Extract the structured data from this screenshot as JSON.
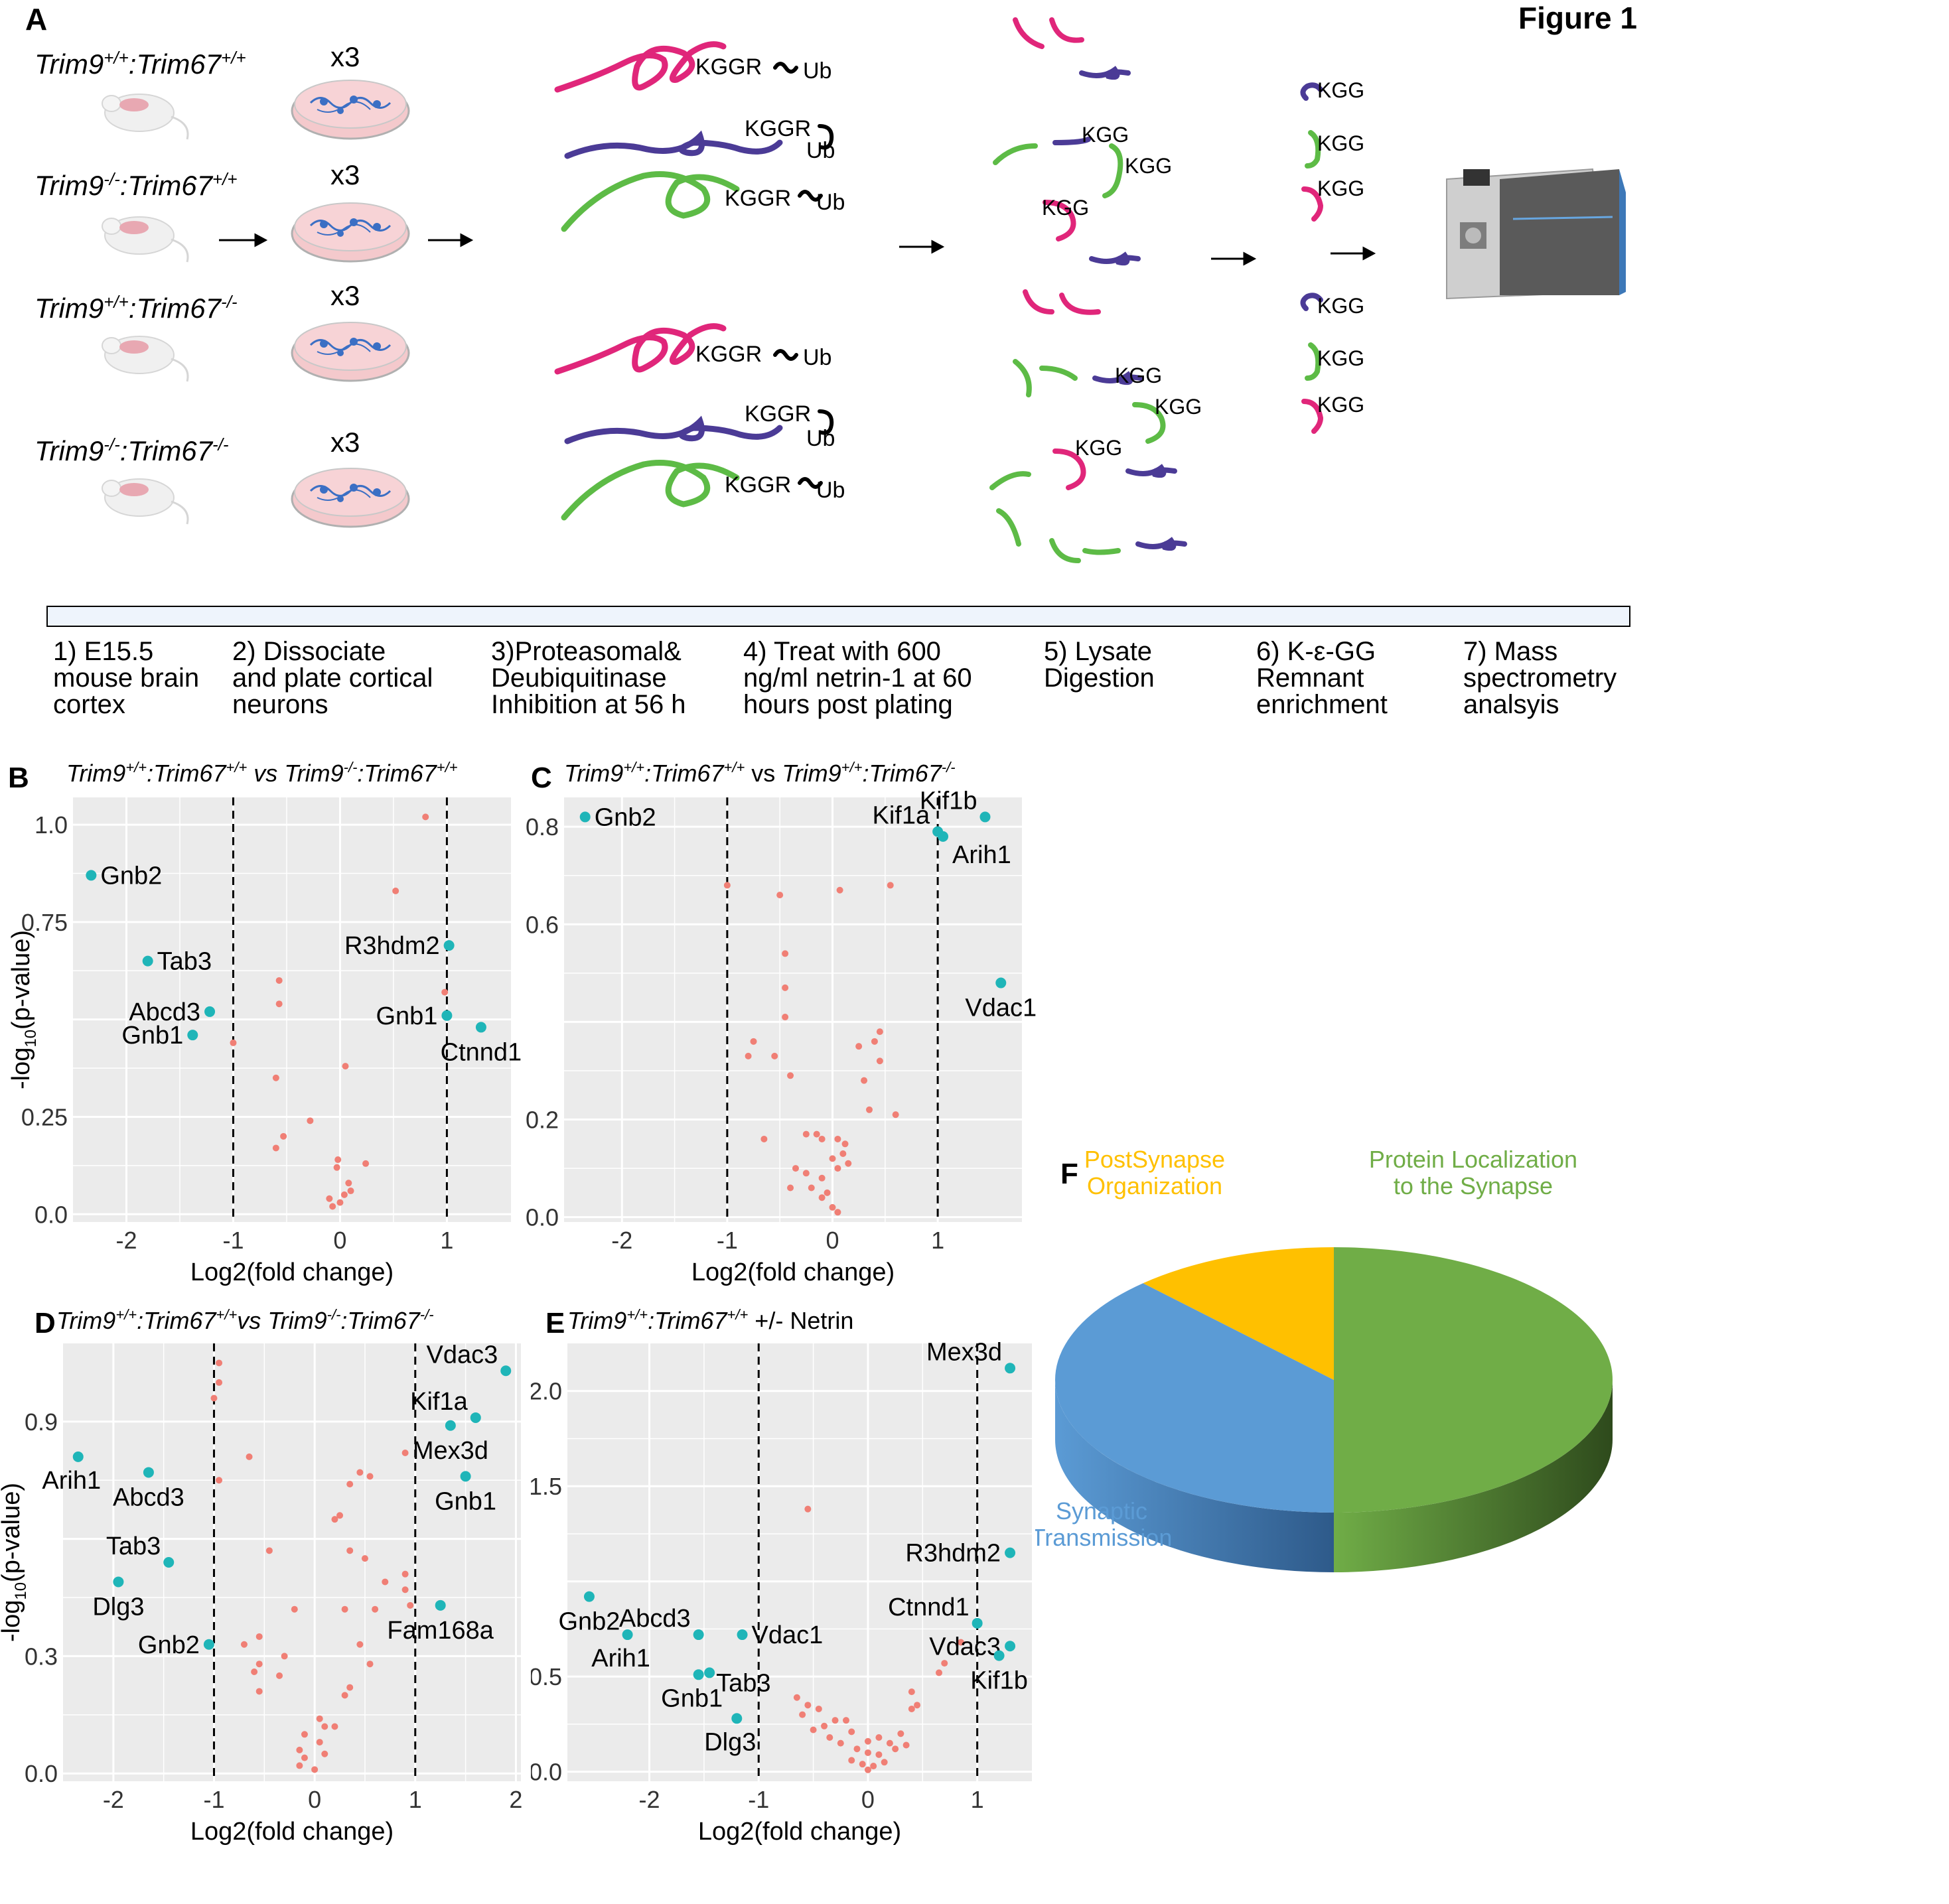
{
  "figure_title": "Figure 1",
  "panel_labels": {
    "A": "A",
    "B": "B",
    "C": "C",
    "D": "D",
    "E": "E",
    "F": "F"
  },
  "panelA": {
    "genotypes": [
      {
        "trim9": "Trim9",
        "trim9_sup": "+/+",
        "sep": ":",
        "trim67": "Trim67",
        "trim67_sup": "+/+"
      },
      {
        "trim9": "Trim9",
        "trim9_sup": "-/-",
        "sep": ":",
        "trim67": "Trim67",
        "trim67_sup": "+/+"
      },
      {
        "trim9": "Trim9",
        "trim9_sup": "+/+",
        "sep": ":",
        "trim67": "Trim67",
        "trim67_sup": "-/-"
      },
      {
        "trim9": "Trim9",
        "trim9_sup": "-/-",
        "sep": ":",
        "trim67": "Trim67",
        "trim67_sup": "-/-"
      }
    ],
    "replicate_label": "x3",
    "peptide_labels": {
      "kggr": "KGGR",
      "kgg": "KGG",
      "ub": "Ub"
    },
    "steps": [
      "1) E15.5\nmouse brain\ncortex",
      "2) Dissociate\nand plate cortical\nneurons",
      "3)Proteasomal&\n Deubiquitinase\nInhibition at 56 h",
      "4) Treat with 600\nng/ml netrin-1 at 60\nhours post plating",
      "5) Lysate\nDigestion",
      "6) K-ε-GG\nRemnant\nenrichment",
      "7) Mass\nspectrometry\nanalsyis"
    ]
  },
  "colors": {
    "magenta": "#e0267a",
    "purple": "#4b3b96",
    "green": "#5dbb46",
    "sig_point": "#1fb5b8",
    "nonsig_point": "#f07f75",
    "plot_bg": "#ebebeb",
    "pie_green": "#70ad47",
    "pie_blue": "#5b9bd5",
    "pie_yellow": "#ffc000"
  },
  "chart_data": [
    {
      "id": "B",
      "type": "scatter",
      "title_parts": [
        "Trim9",
        "+/+",
        ":Trim67",
        "+/+",
        " vs ",
        "Trim9",
        "-/-",
        ":Trim67",
        "+/+"
      ],
      "xlabel": "Log2(fold change)",
      "ylabel": "-log10(p-value)",
      "xlim": [
        -2.5,
        1.6
      ],
      "ylim": [
        -0.02,
        1.07
      ],
      "xticks": [
        -2,
        -1,
        0,
        1
      ],
      "yticks": [
        {
          "v": 0.0,
          "t": "0.0"
        },
        {
          "v": 0.25,
          "t": "0.25"
        },
        {
          "v": 0.5,
          "t": ""
        },
        {
          "v": 0.75,
          "t": "0.75"
        },
        {
          "v": 1.0,
          "t": "1.0"
        }
      ],
      "vlines": [
        -1,
        1
      ],
      "labeled": [
        {
          "x": -2.33,
          "y": 0.87,
          "label": "Gnb2",
          "anchor": "right"
        },
        {
          "x": -1.8,
          "y": 0.65,
          "label": "Tab3",
          "anchor": "right"
        },
        {
          "x": -1.22,
          "y": 0.52,
          "label": "Abcd3",
          "anchor": "left"
        },
        {
          "x": -1.38,
          "y": 0.46,
          "label": "Gnb1",
          "anchor": "left"
        },
        {
          "x": 1.02,
          "y": 0.69,
          "label": "R3hdm2",
          "anchor": "left"
        },
        {
          "x": 1.0,
          "y": 0.51,
          "label": "Gnb1",
          "anchor": "left"
        },
        {
          "x": 1.32,
          "y": 0.48,
          "label": "Ctnnd1",
          "anchor": "below"
        }
      ],
      "points": [
        [
          0.8,
          1.02
        ],
        [
          0.52,
          0.83
        ],
        [
          -0.57,
          0.6
        ],
        [
          -0.57,
          0.54
        ],
        [
          0.98,
          0.57
        ],
        [
          -1.0,
          0.44
        ],
        [
          0.05,
          0.38
        ],
        [
          -0.6,
          0.35
        ],
        [
          -0.28,
          0.24
        ],
        [
          -0.53,
          0.2
        ],
        [
          -0.6,
          0.17
        ],
        [
          -0.02,
          0.14
        ],
        [
          0.24,
          0.13
        ],
        [
          -0.03,
          0.12
        ],
        [
          0.08,
          0.08
        ],
        [
          0.1,
          0.06
        ],
        [
          -0.1,
          0.04
        ],
        [
          0.0,
          0.03
        ],
        [
          -0.07,
          0.02
        ],
        [
          0.04,
          0.05
        ]
      ]
    },
    {
      "id": "C",
      "type": "scatter",
      "title_parts": [
        "Trim9",
        "+/+",
        ":Trim67",
        "+/+",
        " vs ",
        "Trim9",
        "+/+",
        ":Trim67",
        "-/-"
      ],
      "xlabel": "Log2(fold change)",
      "ylabel": "",
      "xlim": [
        -2.55,
        1.8
      ],
      "ylim": [
        -0.01,
        0.86
      ],
      "xticks": [
        -2,
        -1,
        0,
        1
      ],
      "yticks": [
        {
          "v": 0.0,
          "t": "0.0"
        },
        {
          "v": 0.2,
          "t": "0.2"
        },
        {
          "v": 0.4,
          "t": ""
        },
        {
          "v": 0.6,
          "t": "0.6"
        },
        {
          "v": 0.8,
          "t": "0.8"
        }
      ],
      "vlines": [
        -1,
        1
      ],
      "labeled": [
        {
          "x": -2.35,
          "y": 0.82,
          "label": "Gnb2",
          "anchor": "right"
        },
        {
          "x": 1.0,
          "y": 0.79,
          "label": "Kif1a",
          "anchor": "leftup"
        },
        {
          "x": 1.45,
          "y": 0.82,
          "label": "Kif1b",
          "anchor": "leftup"
        },
        {
          "x": 1.05,
          "y": 0.78,
          "label": "Arih1",
          "anchor": "rightdown"
        },
        {
          "x": 1.6,
          "y": 0.48,
          "label": "Vdac1",
          "anchor": "below"
        }
      ],
      "points": [
        [
          -1.0,
          0.68
        ],
        [
          -0.5,
          0.66
        ],
        [
          0.07,
          0.67
        ],
        [
          0.55,
          0.68
        ],
        [
          -0.45,
          0.54
        ],
        [
          -0.45,
          0.47
        ],
        [
          -0.45,
          0.41
        ],
        [
          -0.75,
          0.36
        ],
        [
          -0.8,
          0.33
        ],
        [
          -0.55,
          0.33
        ],
        [
          -0.4,
          0.29
        ],
        [
          0.45,
          0.38
        ],
        [
          0.4,
          0.36
        ],
        [
          0.25,
          0.35
        ],
        [
          0.45,
          0.32
        ],
        [
          0.3,
          0.28
        ],
        [
          0.6,
          0.21
        ],
        [
          0.35,
          0.22
        ],
        [
          -0.65,
          0.16
        ],
        [
          -0.25,
          0.17
        ],
        [
          -0.15,
          0.17
        ],
        [
          -0.1,
          0.16
        ],
        [
          0.05,
          0.16
        ],
        [
          0.12,
          0.15
        ],
        [
          0.1,
          0.13
        ],
        [
          0.15,
          0.11
        ],
        [
          -0.35,
          0.1
        ],
        [
          -0.25,
          0.09
        ],
        [
          0.0,
          0.12
        ],
        [
          0.05,
          0.1
        ],
        [
          -0.1,
          0.08
        ],
        [
          -0.2,
          0.06
        ],
        [
          -0.4,
          0.06
        ],
        [
          -0.05,
          0.05
        ],
        [
          -0.1,
          0.04
        ],
        [
          0.0,
          0.02
        ],
        [
          0.05,
          0.01
        ]
      ]
    },
    {
      "id": "D",
      "type": "scatter",
      "title_parts": [
        "Trim9",
        "+/+",
        ":Trim67",
        "+/+",
        "vs ",
        "Trim9",
        "-/-",
        ":Trim67",
        "-/-"
      ],
      "xlabel": "Log2(fold change)",
      "ylabel": "-log10(p-value)",
      "xlim": [
        -2.5,
        2.05
      ],
      "ylim": [
        -0.02,
        1.1
      ],
      "xticks": [
        -2,
        -1,
        0,
        1,
        2
      ],
      "yticks": [
        {
          "v": 0.0,
          "t": "0.0"
        },
        {
          "v": 0.3,
          "t": "0.3"
        },
        {
          "v": 0.6,
          "t": ""
        },
        {
          "v": 0.9,
          "t": "0.9"
        }
      ],
      "vlines": [
        -1,
        1
      ],
      "labeled": [
        {
          "x": 1.9,
          "y": 1.03,
          "label": "Vdac3",
          "anchor": "leftup"
        },
        {
          "x": 1.6,
          "y": 0.91,
          "label": "Kif1a",
          "anchor": "leftup"
        },
        {
          "x": 1.35,
          "y": 0.89,
          "label": "Mex3d",
          "anchor": "below"
        },
        {
          "x": 1.5,
          "y": 0.76,
          "label": "Gnb1",
          "anchor": "below"
        },
        {
          "x": 1.25,
          "y": 0.43,
          "label": "Fam168a",
          "anchor": "below"
        },
        {
          "x": -2.35,
          "y": 0.81,
          "label": "Arih1",
          "anchor": "belowleft"
        },
        {
          "x": -1.65,
          "y": 0.77,
          "label": "Abcd3",
          "anchor": "below"
        },
        {
          "x": -1.45,
          "y": 0.54,
          "label": "Tab3",
          "anchor": "leftup"
        },
        {
          "x": -1.95,
          "y": 0.49,
          "label": "Dlg3",
          "anchor": "below"
        },
        {
          "x": -1.05,
          "y": 0.33,
          "label": "Gnb2",
          "anchor": "left"
        }
      ],
      "points": [
        [
          -0.95,
          1.05
        ],
        [
          -0.95,
          1.0
        ],
        [
          -1.0,
          0.96
        ],
        [
          -0.65,
          0.81
        ],
        [
          -0.95,
          0.75
        ],
        [
          0.45,
          0.77
        ],
        [
          0.55,
          0.76
        ],
        [
          0.9,
          0.82
        ],
        [
          0.35,
          0.74
        ],
        [
          0.25,
          0.66
        ],
        [
          0.2,
          0.65
        ],
        [
          -0.45,
          0.57
        ],
        [
          0.35,
          0.57
        ],
        [
          0.5,
          0.55
        ],
        [
          0.7,
          0.49
        ],
        [
          0.9,
          0.47
        ],
        [
          0.9,
          0.51
        ],
        [
          -0.2,
          0.42
        ],
        [
          0.3,
          0.42
        ],
        [
          0.6,
          0.42
        ],
        [
          0.95,
          0.43
        ],
        [
          -0.55,
          0.35
        ],
        [
          -0.7,
          0.33
        ],
        [
          -0.55,
          0.28
        ],
        [
          -0.35,
          0.25
        ],
        [
          -0.3,
          0.3
        ],
        [
          0.45,
          0.33
        ],
        [
          0.55,
          0.28
        ],
        [
          0.35,
          0.22
        ],
        [
          -0.6,
          0.26
        ],
        [
          -0.55,
          0.21
        ],
        [
          -0.1,
          0.1
        ],
        [
          0.05,
          0.14
        ],
        [
          0.1,
          0.12
        ],
        [
          -0.15,
          0.06
        ],
        [
          -0.1,
          0.04
        ],
        [
          0.05,
          0.08
        ],
        [
          0.1,
          0.05
        ],
        [
          -0.15,
          0.02
        ],
        [
          0.0,
          0.01
        ],
        [
          0.2,
          0.12
        ],
        [
          0.3,
          0.2
        ]
      ]
    },
    {
      "id": "E",
      "type": "scatter",
      "title_parts": [
        "Trim9",
        "+/+",
        ":Trim67",
        "+/+",
        " +/- Netrin"
      ],
      "xlabel": "Log2(fold change)",
      "ylabel": "",
      "xlim": [
        -2.75,
        1.5
      ],
      "ylim": [
        -0.05,
        2.25
      ],
      "xticks": [
        -2,
        -1,
        0,
        1
      ],
      "yticks": [
        {
          "v": 0.0,
          "t": "0.0"
        },
        {
          "v": 0.5,
          "t": "0.5"
        },
        {
          "v": 1.0,
          "t": ""
        },
        {
          "v": 1.5,
          "t": "1.5"
        },
        {
          "v": 2.0,
          "t": "2.0"
        }
      ],
      "vlines": [
        -1,
        1
      ],
      "labeled": [
        {
          "x": 1.3,
          "y": 2.12,
          "label": "Mex3d",
          "anchor": "leftup"
        },
        {
          "x": 1.3,
          "y": 1.15,
          "label": "R3hdm2",
          "anchor": "left"
        },
        {
          "x": 1.0,
          "y": 0.78,
          "label": "Ctnnd1",
          "anchor": "leftup"
        },
        {
          "x": 1.3,
          "y": 0.66,
          "label": "Vdac3",
          "anchor": "left"
        },
        {
          "x": 1.2,
          "y": 0.61,
          "label": "Kif1b",
          "anchor": "below"
        },
        {
          "x": -2.55,
          "y": 0.92,
          "label": "Gnb2",
          "anchor": "below"
        },
        {
          "x": -2.2,
          "y": 0.72,
          "label": "Arih1",
          "anchor": "belowleft"
        },
        {
          "x": -1.55,
          "y": 0.72,
          "label": "Abcd3",
          "anchor": "leftup"
        },
        {
          "x": -1.15,
          "y": 0.72,
          "label": "Vdac1",
          "anchor": "right"
        },
        {
          "x": -1.55,
          "y": 0.51,
          "label": "Gnb1",
          "anchor": "belowleft"
        },
        {
          "x": -1.45,
          "y": 0.52,
          "label": "Tab3",
          "anchor": "rightlow"
        },
        {
          "x": -1.2,
          "y": 0.28,
          "label": "Dlg3",
          "anchor": "belowleft"
        }
      ],
      "points": [
        [
          -0.55,
          1.38
        ],
        [
          0.85,
          0.68
        ],
        [
          0.7,
          0.57
        ],
        [
          0.65,
          0.52
        ],
        [
          0.4,
          0.42
        ],
        [
          0.45,
          0.35
        ],
        [
          0.4,
          0.33
        ],
        [
          -0.65,
          0.39
        ],
        [
          -0.55,
          0.35
        ],
        [
          -0.6,
          0.3
        ],
        [
          -0.45,
          0.33
        ],
        [
          -0.3,
          0.27
        ],
        [
          -0.4,
          0.24
        ],
        [
          -0.2,
          0.27
        ],
        [
          -0.5,
          0.22
        ],
        [
          -0.35,
          0.18
        ],
        [
          -0.15,
          0.21
        ],
        [
          -0.25,
          0.15
        ],
        [
          0.0,
          0.16
        ],
        [
          0.1,
          0.18
        ],
        [
          -0.1,
          0.12
        ],
        [
          0.0,
          0.1
        ],
        [
          0.1,
          0.09
        ],
        [
          0.2,
          0.15
        ],
        [
          0.25,
          0.12
        ],
        [
          -0.15,
          0.06
        ],
        [
          -0.05,
          0.04
        ],
        [
          0.05,
          0.03
        ],
        [
          0.0,
          0.01
        ],
        [
          0.15,
          0.05
        ],
        [
          0.3,
          0.2
        ],
        [
          0.35,
          0.14
        ]
      ]
    },
    {
      "id": "F",
      "type": "pie",
      "categories": [
        "Protein Localization\nto the Synapse",
        "Synaptic\nTransmission",
        "PostSynapse\nOrganization"
      ],
      "values": [
        50,
        38,
        12
      ],
      "label_colors": [
        "#70ad47",
        "#5b9bd5",
        "#ffc000"
      ]
    }
  ]
}
